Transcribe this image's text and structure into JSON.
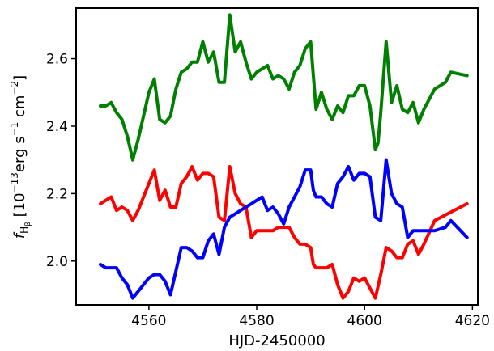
{
  "chart_data": {
    "type": "line",
    "xlabel": "HJD-2450000",
    "ylabel": {
      "prefix": "f",
      "sub": "H",
      "subsub": "β",
      "unit_open": " [10",
      "unit_exp1": "−13",
      "unit_mid": "erg s",
      "unit_exp2": "−1",
      "unit_cm": " cm",
      "unit_exp3": "−2",
      "unit_close": "]"
    },
    "xlim": [
      4546.5,
      4621
    ],
    "ylim": [
      1.87,
      2.75
    ],
    "xticks": [
      4560,
      4580,
      4600,
      4620
    ],
    "yticks": [
      2.0,
      2.2,
      2.4,
      2.6
    ],
    "ytick_labels": [
      "2.0",
      "2.2",
      "2.4",
      "2.6"
    ],
    "grid": false,
    "series": [
      {
        "color": "#008000",
        "x": [
          4551,
          4552,
          4553,
          4554,
          4555,
          4556,
          4557,
          4558,
          4560,
          4561,
          4562,
          4563,
          4564,
          4565,
          4566,
          4567,
          4568,
          4569,
          4570,
          4571,
          4572,
          4573,
          4574,
          4575,
          4576,
          4577,
          4578,
          4579,
          4580,
          4581,
          4582,
          4583,
          4584,
          4585,
          4586,
          4587,
          4588,
          4589,
          4590,
          4590.5,
          4591,
          4592,
          4593,
          4594,
          4595,
          4596,
          4597,
          4598,
          4599,
          4600,
          4601,
          4602,
          4602.5,
          4603,
          4604,
          4605,
          4606,
          4607,
          4608,
          4609,
          4610,
          4611,
          4613,
          4614,
          4615,
          4616,
          4619
        ],
        "y": [
          2.46,
          2.46,
          2.47,
          2.44,
          2.42,
          2.37,
          2.3,
          2.36,
          2.5,
          2.54,
          2.42,
          2.41,
          2.43,
          2.51,
          2.56,
          2.57,
          2.59,
          2.59,
          2.65,
          2.59,
          2.62,
          2.53,
          2.53,
          2.73,
          2.62,
          2.65,
          2.59,
          2.54,
          2.56,
          2.57,
          2.58,
          2.54,
          2.55,
          2.54,
          2.51,
          2.56,
          2.58,
          2.63,
          2.65,
          2.55,
          2.45,
          2.5,
          2.45,
          2.42,
          2.46,
          2.44,
          2.49,
          2.49,
          2.52,
          2.52,
          2.46,
          2.33,
          2.35,
          2.44,
          2.65,
          2.47,
          2.52,
          2.45,
          2.44,
          2.47,
          2.41,
          2.45,
          2.51,
          2.52,
          2.53,
          2.56,
          2.55
        ]
      },
      {
        "color": "#ff0000",
        "x": [
          4551,
          4552,
          4553,
          4554,
          4555,
          4556,
          4557,
          4558,
          4560,
          4561,
          4562,
          4563,
          4564,
          4565,
          4566,
          4567,
          4568,
          4569,
          4570,
          4571,
          4572,
          4573,
          4574,
          4575,
          4576,
          4577,
          4578,
          4579,
          4580,
          4581,
          4582,
          4583,
          4584,
          4585,
          4586,
          4587,
          4588,
          4589,
          4590,
          4590.5,
          4591,
          4592,
          4593,
          4594,
          4595,
          4596,
          4597,
          4598,
          4599,
          4600,
          4601,
          4602,
          4603,
          4604,
          4605,
          4606,
          4607,
          4608,
          4609,
          4610,
          4611,
          4613,
          4619
        ],
        "y": [
          2.17,
          2.18,
          2.19,
          2.15,
          2.16,
          2.15,
          2.12,
          2.15,
          2.23,
          2.27,
          2.18,
          2.21,
          2.16,
          2.16,
          2.23,
          2.25,
          2.28,
          2.24,
          2.26,
          2.26,
          2.25,
          2.13,
          2.12,
          2.28,
          2.2,
          2.17,
          2.16,
          2.07,
          2.09,
          2.09,
          2.09,
          2.09,
          2.1,
          2.1,
          2.1,
          2.07,
          2.05,
          2.05,
          2.04,
          1.99,
          1.98,
          1.98,
          1.98,
          1.99,
          1.93,
          1.89,
          1.91,
          1.95,
          1.94,
          1.95,
          1.92,
          1.89,
          1.96,
          2.04,
          2.03,
          2.01,
          2.01,
          2.05,
          2.06,
          2.02,
          2.05,
          2.12,
          2.17
        ]
      },
      {
        "color": "#0000ff",
        "x": [
          4551,
          4552,
          4553,
          4554,
          4555,
          4556,
          4557,
          4558,
          4560,
          4561,
          4562,
          4563,
          4564,
          4565,
          4566,
          4567,
          4568,
          4569,
          4570,
          4571,
          4572,
          4573,
          4574,
          4575,
          4576,
          4577,
          4578,
          4579,
          4580,
          4581,
          4582,
          4583,
          4584,
          4585,
          4586,
          4587,
          4588,
          4589,
          4590,
          4590.5,
          4591,
          4592,
          4593,
          4594,
          4595,
          4596,
          4597,
          4598,
          4599,
          4600,
          4601,
          4602,
          4603,
          4604,
          4605,
          4606,
          4607,
          4608,
          4609,
          4610,
          4611,
          4613,
          4615,
          4616,
          4619
        ],
        "y": [
          1.99,
          1.98,
          1.98,
          1.98,
          1.95,
          1.93,
          1.89,
          1.91,
          1.95,
          1.96,
          1.96,
          1.94,
          1.9,
          1.97,
          2.04,
          2.04,
          2.03,
          2.01,
          2.01,
          2.06,
          2.08,
          2.02,
          2.1,
          2.13,
          2.14,
          2.15,
          2.16,
          2.17,
          2.18,
          2.19,
          2.15,
          2.16,
          2.14,
          2.11,
          2.16,
          2.19,
          2.22,
          2.27,
          2.27,
          2.21,
          2.19,
          2.19,
          2.17,
          2.16,
          2.23,
          2.25,
          2.28,
          2.24,
          2.26,
          2.26,
          2.25,
          2.13,
          2.12,
          2.3,
          2.2,
          2.17,
          2.16,
          2.07,
          2.09,
          2.09,
          2.09,
          2.09,
          2.1,
          2.12,
          2.07
        ]
      }
    ]
  }
}
